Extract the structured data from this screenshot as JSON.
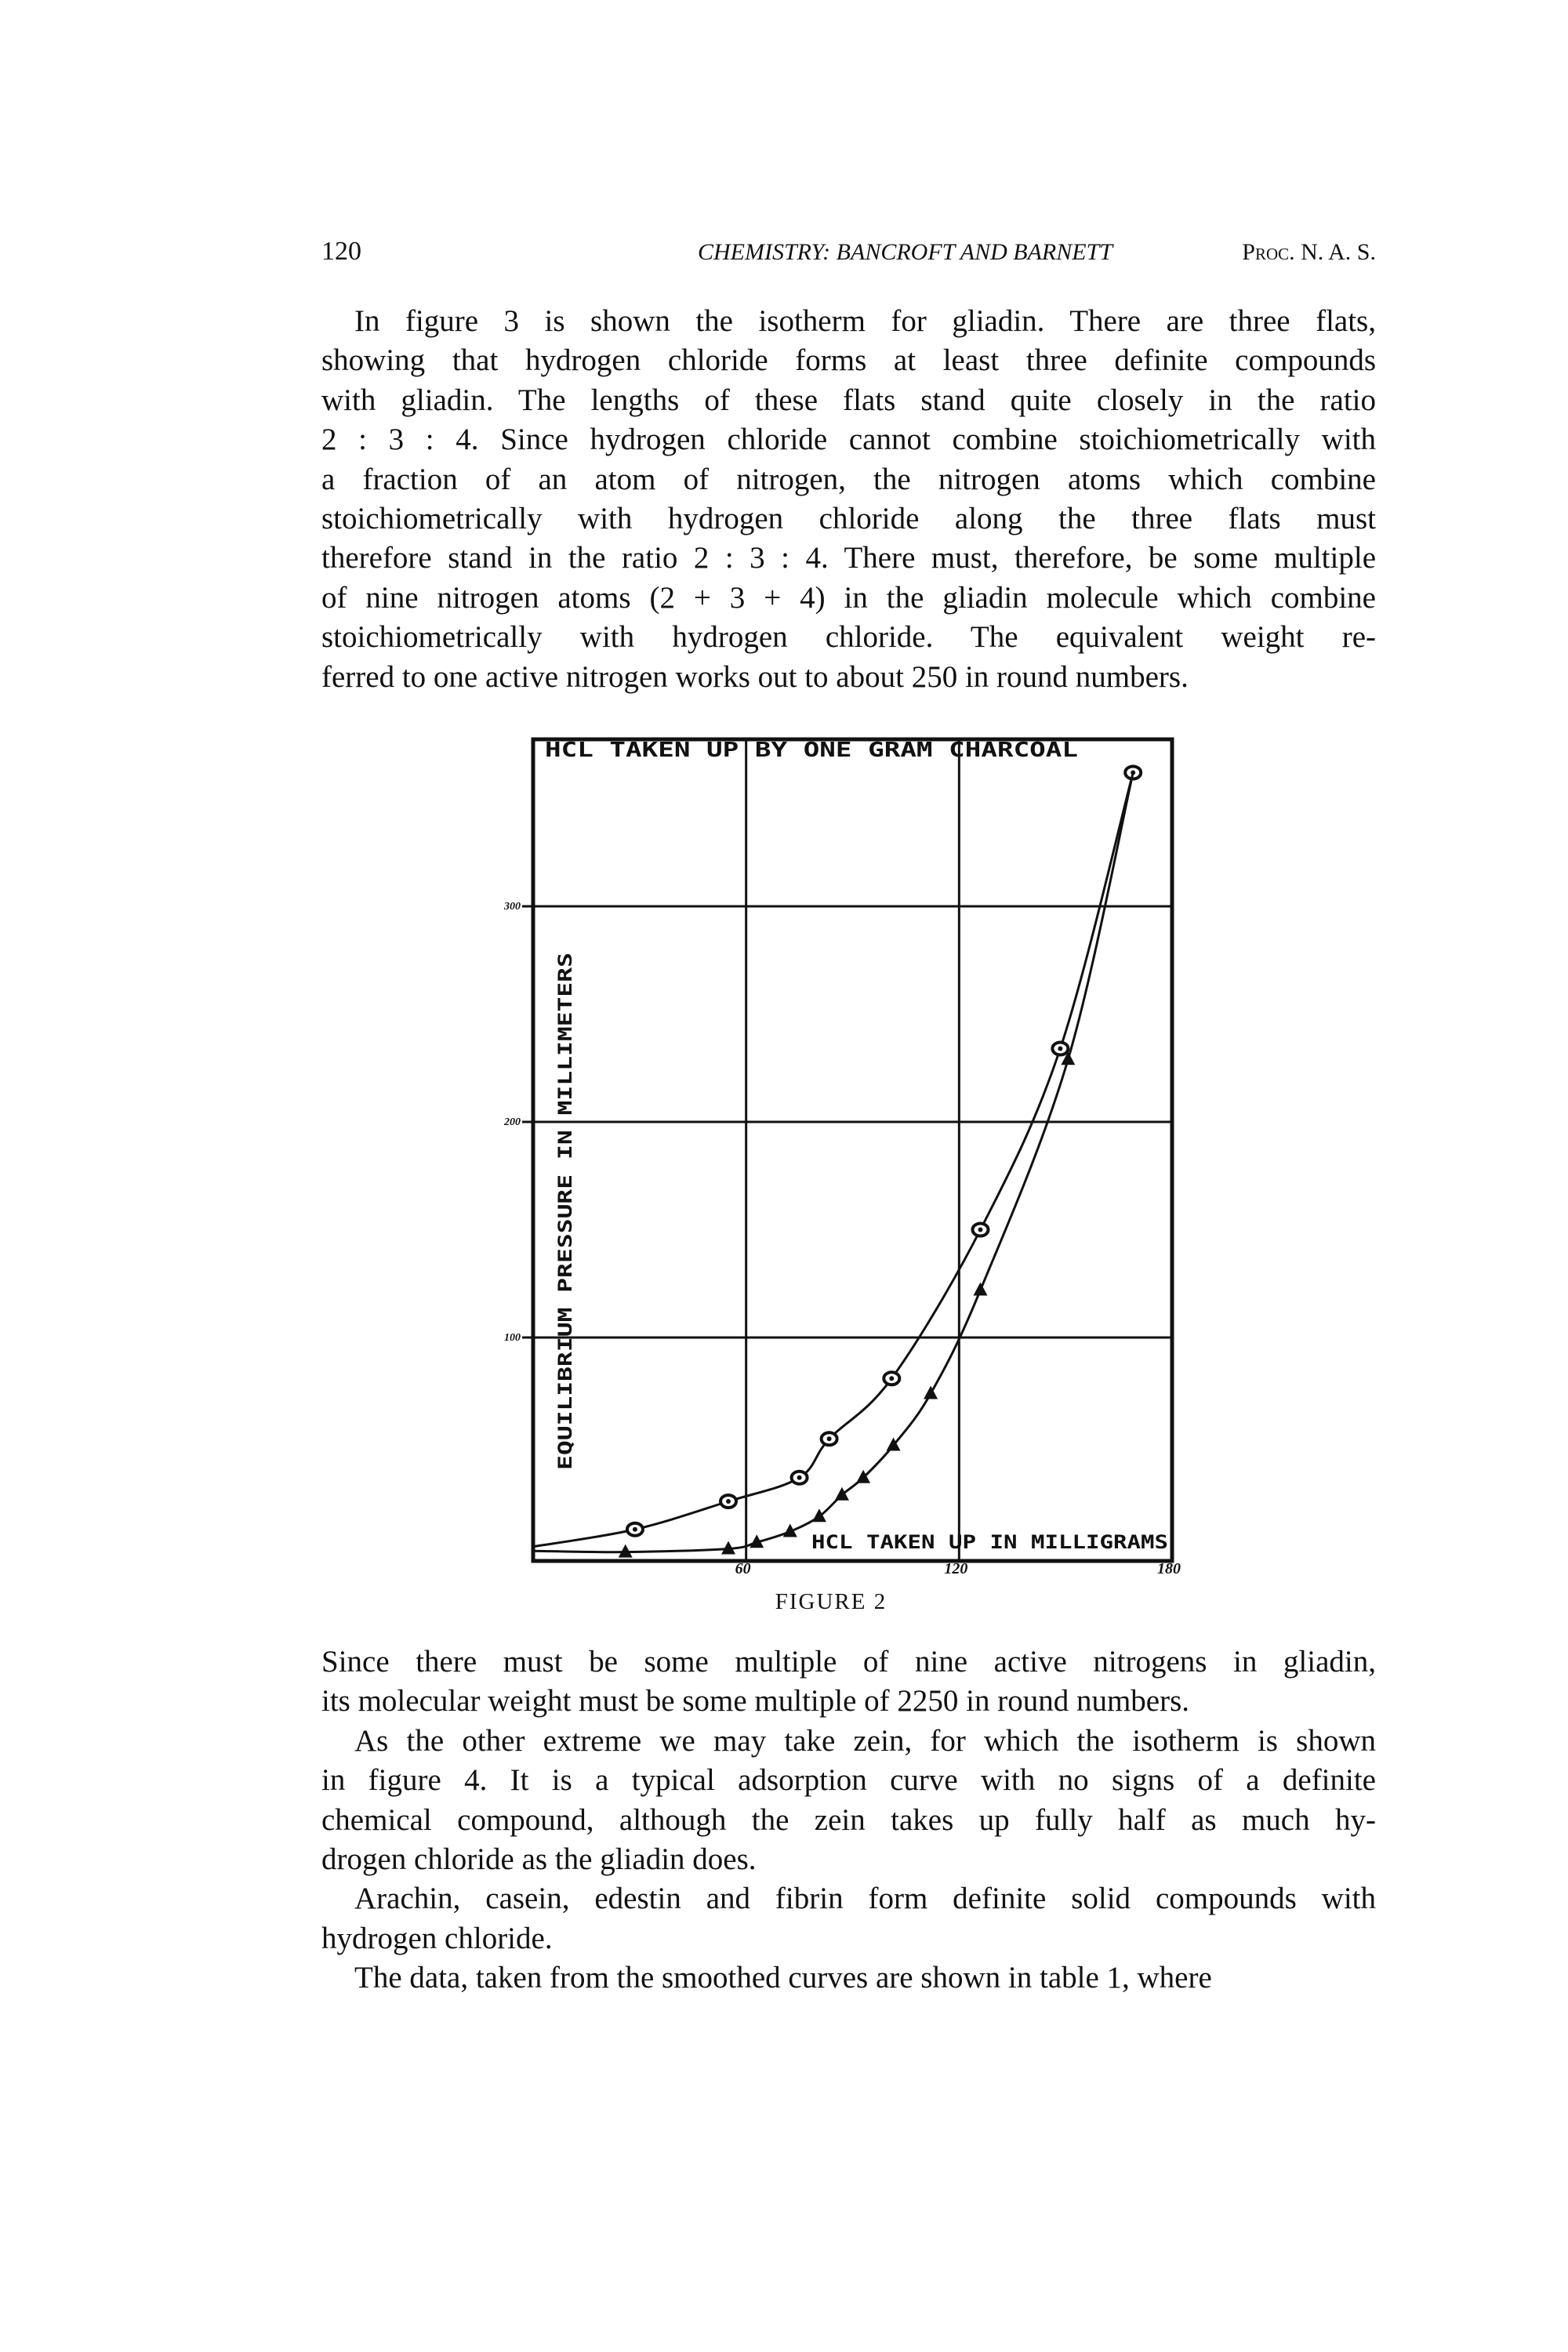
{
  "header": {
    "page_number": "120",
    "running_title": "CHEMISTRY: BANCROFT AND BARNETT",
    "journal": "Proc. N. A. S."
  },
  "paragraph1_lines": [
    "In figure 3 is shown the isotherm for gliadin.  There are three flats,",
    "showing that hydrogen chloride forms at least three definite compounds",
    "with gliadin.  The lengths of these flats stand quite closely in the ratio",
    "2 : 3 : 4.  Since hydrogen chloride cannot combine stoichiometrically with",
    "a fraction of an atom of nitrogen, the nitrogen atoms which combine",
    "stoichiometrically with hydrogen chloride along the three flats must",
    "therefore stand in the ratio 2 : 3 : 4.  There must, therefore, be some multiple",
    "of nine nitrogen atoms (2 + 3 + 4) in the gliadin molecule which combine",
    "stoichiometrically with hydrogen chloride.  The equivalent weight re-",
    "ferred to one active nitrogen works out to about 250 in round numbers."
  ],
  "paragraph2_lines": [
    "Since there must be some multiple of nine active nitrogens in gliadin,",
    "its molecular weight must be some multiple of 2250 in round numbers.",
    "As the other extreme we may take zein, for which the isotherm is shown",
    "in figure 4.  It is a typical adsorption curve with no signs of a definite",
    "chemical compound, although the zein takes up fully half as much hy-",
    "drogen chloride as the gliadin does.",
    "Arachin, casein, edestin and fibrin form definite solid compounds with",
    "hydrogen chloride.",
    "The data, taken from the smoothed curves are shown in table 1, where"
  ],
  "figure_caption": "FIGURE 2",
  "chart_data": {
    "type": "line",
    "title": "HCL TAKEN UP BY ONE GRAM CHARCOAL",
    "xlabel": "HCL TAKEN UP IN MILLIGRAMS",
    "ylabel": "EQUILIBRIUM PRESSURE IN MILLIMETERS",
    "xlim": [
      0,
      180
    ],
    "ylim": [
      0,
      377
    ],
    "x_ticks": [
      "60",
      "120",
      "180"
    ],
    "x_tick_values": [
      60,
      120,
      180
    ],
    "y_ticks": [
      "100",
      "200",
      "300"
    ],
    "y_tick_values": [
      100,
      200,
      300
    ],
    "grid": true,
    "series": [
      {
        "marker": "circle",
        "points": [
          [
            0,
            3
          ],
          [
            28.7,
            11
          ],
          [
            55,
            24
          ],
          [
            75,
            35
          ],
          [
            83.4,
            53
          ],
          [
            101,
            81
          ],
          [
            126,
            150
          ],
          [
            148.5,
            234
          ],
          [
            169,
            362
          ]
        ]
      },
      {
        "marker": "triangle",
        "points": [
          [
            0,
            1
          ],
          [
            26,
            0.5
          ],
          [
            55,
            2
          ],
          [
            63,
            5
          ],
          [
            72.4,
            10
          ],
          [
            80.6,
            17
          ],
          [
            87,
            27
          ],
          [
            93,
            35
          ],
          [
            101.5,
            50
          ],
          [
            112,
            74
          ],
          [
            126,
            122
          ],
          [
            150.7,
            229
          ],
          [
            169,
            362
          ]
        ]
      }
    ],
    "color": "#111111"
  }
}
